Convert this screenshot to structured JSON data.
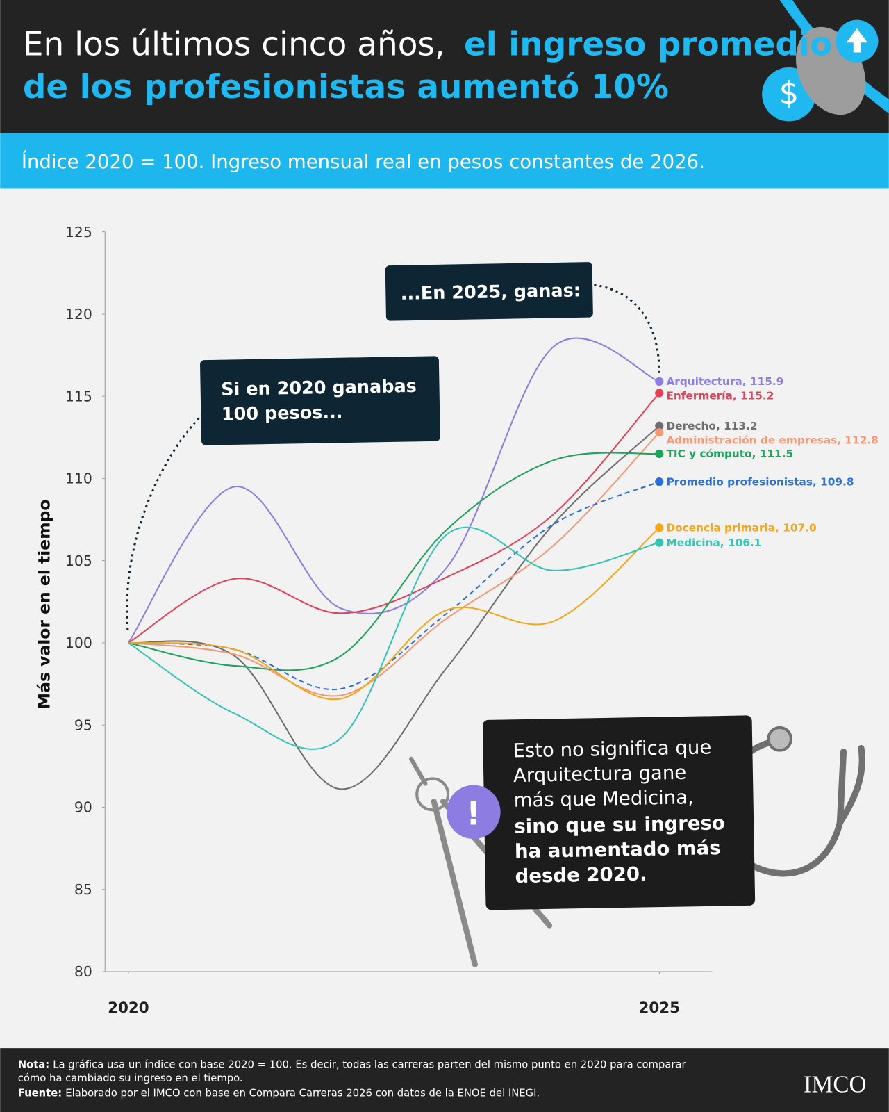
{
  "chart_data": {
    "type": "line",
    "title": {
      "plain": "En los últimos cinco años,",
      "highlight_lines": [
        "el ingreso promedio",
        "de los profesionistas aumentó 10%"
      ]
    },
    "subtitle": "Índice 2020 = 100. Ingreso mensual real en pesos constantes de 2026.",
    "ylabel": "Más valor en el tiempo",
    "x": [
      2020,
      2021,
      2022,
      2023,
      2024,
      2025
    ],
    "xlim": [
      2019.78,
      2025.5
    ],
    "xticks": [
      2020,
      2025
    ],
    "ylim": [
      80,
      125
    ],
    "yticks": [
      80,
      85,
      90,
      95,
      100,
      105,
      110,
      115,
      120,
      125
    ],
    "series": [
      {
        "name": "Arquitectura",
        "color": "#8d7de3",
        "values": [
          100,
          109.5,
          102.1,
          104.6,
          118.0,
          115.9
        ],
        "value_labels": [
          null,
          null,
          null,
          null,
          null,
          "115.9"
        ]
      },
      {
        "name": "Enfermería",
        "color": "#df4259",
        "values": [
          100,
          103.9,
          101.8,
          104.0,
          107.8,
          115.2
        ],
        "value_labels": [
          null,
          null,
          null,
          null,
          null,
          "115.2"
        ]
      },
      {
        "name": "Derecho",
        "color": "#6e6e6e",
        "values": [
          100,
          99.2,
          91.1,
          98.5,
          107.2,
          113.2
        ],
        "value_labels": [
          null,
          null,
          null,
          null,
          null,
          "113.2"
        ]
      },
      {
        "name": "Administración de empresas",
        "color": "#f49873",
        "values": [
          100,
          99.3,
          96.8,
          101.5,
          105.9,
          112.8
        ],
        "value_labels": [
          null,
          null,
          null,
          null,
          null,
          "112.8"
        ]
      },
      {
        "name": "TIC y cómputo",
        "color": "#1fa35c",
        "values": [
          100,
          98.6,
          99.2,
          106.9,
          111.1,
          111.5
        ],
        "value_labels": [
          null,
          null,
          null,
          null,
          null,
          "111.5"
        ]
      },
      {
        "name": "Promedio profesionistas",
        "color": "#2a6fd6",
        "dashed": true,
        "values": [
          100,
          99.6,
          97.2,
          101.8,
          107.2,
          109.8
        ],
        "value_labels": [
          null,
          null,
          null,
          null,
          null,
          "109.8"
        ]
      },
      {
        "name": "Docencia primaria",
        "color": "#f2a71b",
        "values": [
          100,
          99.6,
          96.6,
          102.0,
          101.3,
          107.0
        ],
        "value_labels": [
          null,
          null,
          null,
          null,
          null,
          "107.0"
        ]
      },
      {
        "name": "Medicina",
        "color": "#35c4b4",
        "values": [
          100,
          95.7,
          94.2,
          106.6,
          104.4,
          106.1
        ],
        "value_labels": [
          null,
          null,
          null,
          null,
          null,
          "106.1"
        ]
      }
    ],
    "annotations": {
      "start": [
        "Si en 2020 ganabas",
        "100 pesos..."
      ],
      "end": "...En 2025, ganas:",
      "insight_regular": [
        "Esto no significa que",
        "Arquitectura gane",
        "más que Medicina,"
      ],
      "insight_bold": [
        "sino que su ingreso",
        "ha aumentado más",
        "desde 2020."
      ]
    },
    "note": {
      "label": "Nota:",
      "lines": [
        "La gráfica usa un índice con base 2020 = 100. Es decir, todas las carreras parten del mismo punto en 2020 para comparar",
        "cómo ha cambiado su ingreso en el tiempo."
      ]
    },
    "source": {
      "label": "Fuente:",
      "text": "Elaborado por el IMCO con base en Compara Carreras 2026 con datos de la ENOE del INEGI."
    },
    "logo": "IMCO"
  }
}
